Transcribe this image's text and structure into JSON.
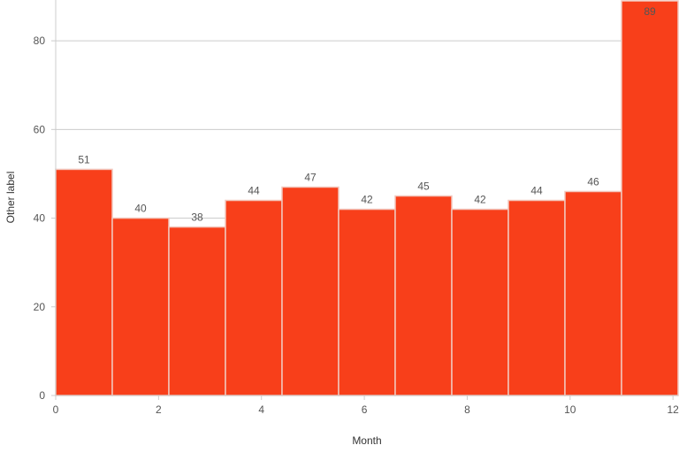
{
  "chart_data": {
    "type": "bar",
    "xlabel": "Month",
    "ylabel": "Other label",
    "xlim": [
      0,
      12.1
    ],
    "ylim": [
      0,
      89
    ],
    "x_ticks": [
      0,
      2,
      4,
      6,
      8,
      10,
      12
    ],
    "y_ticks": [
      0,
      20,
      40,
      60,
      80
    ],
    "grid": true,
    "bar_color": "#f83f1a",
    "bins": [
      {
        "start": 0.0,
        "end": 1.1,
        "value": 51
      },
      {
        "start": 1.1,
        "end": 2.2,
        "value": 40
      },
      {
        "start": 2.2,
        "end": 3.3,
        "value": 38
      },
      {
        "start": 3.3,
        "end": 4.4,
        "value": 44
      },
      {
        "start": 4.4,
        "end": 5.5,
        "value": 47
      },
      {
        "start": 5.5,
        "end": 6.6,
        "value": 42
      },
      {
        "start": 6.6,
        "end": 7.7,
        "value": 45
      },
      {
        "start": 7.7,
        "end": 8.8,
        "value": 42
      },
      {
        "start": 8.8,
        "end": 9.9,
        "value": 44
      },
      {
        "start": 9.9,
        "end": 11.0,
        "value": 46
      },
      {
        "start": 11.0,
        "end": 12.1,
        "value": 89
      }
    ]
  }
}
